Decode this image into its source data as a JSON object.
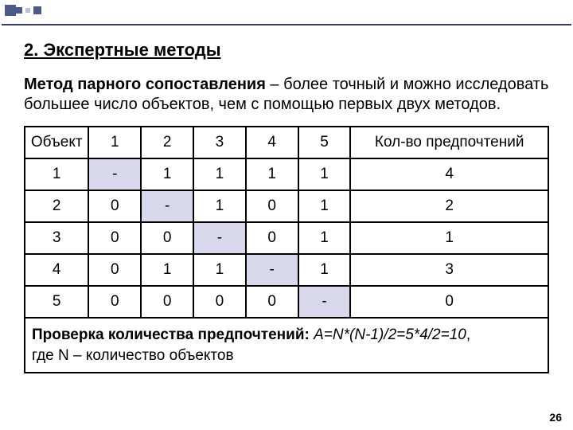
{
  "heading": "2. Экспертные методы",
  "intro_bold": "Метод парного сопоставления",
  "intro_rest": " – более точный и можно исследовать большее число объектов, чем с помощью первых двух методов.",
  "page_number": "26",
  "table": {
    "columns": [
      "Объект",
      "1",
      "2",
      "3",
      "4",
      "5",
      "Кол-во предпочтений"
    ],
    "rows": [
      [
        "1",
        "-",
        "1",
        "1",
        "1",
        "1",
        "4"
      ],
      [
        "2",
        "0",
        "-",
        "1",
        "0",
        "1",
        "2"
      ],
      [
        "3",
        "0",
        "0",
        "-",
        "0",
        "1",
        "1"
      ],
      [
        "4",
        "0",
        "1",
        "1",
        "-",
        "1",
        "3"
      ],
      [
        "5",
        "0",
        "0",
        "0",
        "0",
        "-",
        "0"
      ]
    ],
    "diagonal_color": "#d8d8ec",
    "border_color": "#000000",
    "footer_bold": "Проверка количества предпочтений:",
    "footer_eq": " A=N*(N-1)/2=5*4/2=10",
    "footer_line2": "где N – количество объектов"
  }
}
